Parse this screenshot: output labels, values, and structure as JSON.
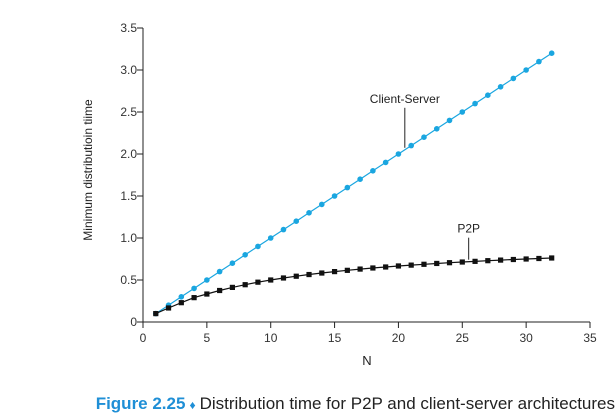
{
  "caption": {
    "figure_label": "Figure 2.25",
    "separator": "♦",
    "text": "Distribution time for P2P and client-server architectures"
  },
  "colors": {
    "client_server": "#1aa6e0",
    "p2p": "#111111",
    "caption_accent": "#1f8fd6"
  },
  "chart_data": {
    "type": "line",
    "xlabel": "N",
    "ylabel": "Minimum distributioin tiime",
    "xlim": [
      0,
      35
    ],
    "ylim": [
      0,
      3.5
    ],
    "x_ticks": [
      0,
      5,
      10,
      15,
      20,
      25,
      30,
      35
    ],
    "y_ticks": [
      "0",
      "0.5",
      "1.0",
      "1.5",
      "2.0",
      "2.5",
      "3.0",
      "3.5"
    ],
    "x": [
      1,
      2,
      3,
      4,
      5,
      6,
      7,
      8,
      9,
      10,
      11,
      12,
      13,
      14,
      15,
      16,
      17,
      18,
      19,
      20,
      21,
      22,
      23,
      24,
      25,
      26,
      27,
      28,
      29,
      30,
      31,
      32
    ],
    "series": [
      {
        "name": "Client-Server",
        "marker": "circle",
        "values": [
          0.1,
          0.2,
          0.3,
          0.4,
          0.5,
          0.6,
          0.7,
          0.8,
          0.9,
          1.0,
          1.1,
          1.2,
          1.3,
          1.4,
          1.5,
          1.6,
          1.7,
          1.8,
          1.9,
          2.0,
          2.1,
          2.2,
          2.3,
          2.4,
          2.5,
          2.6,
          2.7,
          2.8,
          2.9,
          3.0,
          3.1,
          3.2
        ]
      },
      {
        "name": "P2P",
        "marker": "square",
        "values": [
          0.1,
          0.167,
          0.23,
          0.29,
          0.333,
          0.375,
          0.412,
          0.444,
          0.474,
          0.5,
          0.524,
          0.545,
          0.565,
          0.583,
          0.6,
          0.615,
          0.63,
          0.643,
          0.655,
          0.667,
          0.677,
          0.687,
          0.697,
          0.706,
          0.714,
          0.722,
          0.73,
          0.737,
          0.744,
          0.75,
          0.756,
          0.762
        ]
      }
    ],
    "annotations": [
      {
        "text": "Client-Server",
        "series": 0,
        "at_x": 20.5
      },
      {
        "text": "P2P",
        "series": 1,
        "at_x": 25.5
      }
    ]
  }
}
